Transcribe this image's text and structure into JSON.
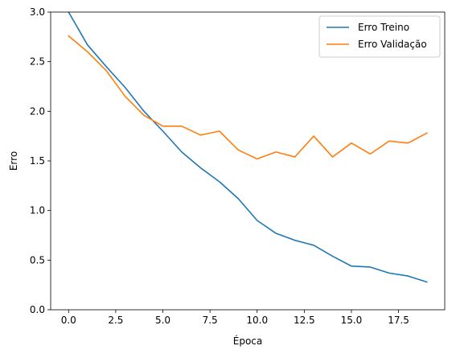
{
  "chart_data": {
    "type": "line",
    "title": "",
    "xlabel": "Época",
    "ylabel": "Erro",
    "xlim": [
      -0.95,
      19.95
    ],
    "ylim": [
      0.0,
      3.0
    ],
    "xticks": [
      0.0,
      2.5,
      5.0,
      7.5,
      10.0,
      12.5,
      15.0,
      17.5
    ],
    "xtick_labels": [
      "0.0",
      "2.5",
      "5.0",
      "7.5",
      "10.0",
      "12.5",
      "15.0",
      "17.5"
    ],
    "yticks": [
      0.0,
      0.5,
      1.0,
      1.5,
      2.0,
      2.5,
      3.0
    ],
    "ytick_labels": [
      "0.0",
      "0.5",
      "1.0",
      "1.5",
      "2.0",
      "2.5",
      "3.0"
    ],
    "grid": false,
    "legend_position": "top-right",
    "x": [
      0,
      1,
      2,
      3,
      4,
      5,
      6,
      7,
      8,
      9,
      10,
      11,
      12,
      13,
      14,
      15,
      16,
      17,
      18,
      19
    ],
    "series": [
      {
        "name": "Erro Treino",
        "color": "#1f77b4",
        "values": [
          3.0,
          2.67,
          2.45,
          2.24,
          2.0,
          1.8,
          1.59,
          1.43,
          1.29,
          1.12,
          0.9,
          0.77,
          0.7,
          0.65,
          0.54,
          0.44,
          0.43,
          0.37,
          0.34,
          0.28
        ]
      },
      {
        "name": "Erro Validação",
        "color": "#ff7f0e",
        "values": [
          2.76,
          2.6,
          2.41,
          2.15,
          1.96,
          1.85,
          1.85,
          1.76,
          1.8,
          1.61,
          1.52,
          1.59,
          1.54,
          1.75,
          1.54,
          1.68,
          1.57,
          1.7,
          1.68,
          1.78
        ]
      }
    ]
  }
}
